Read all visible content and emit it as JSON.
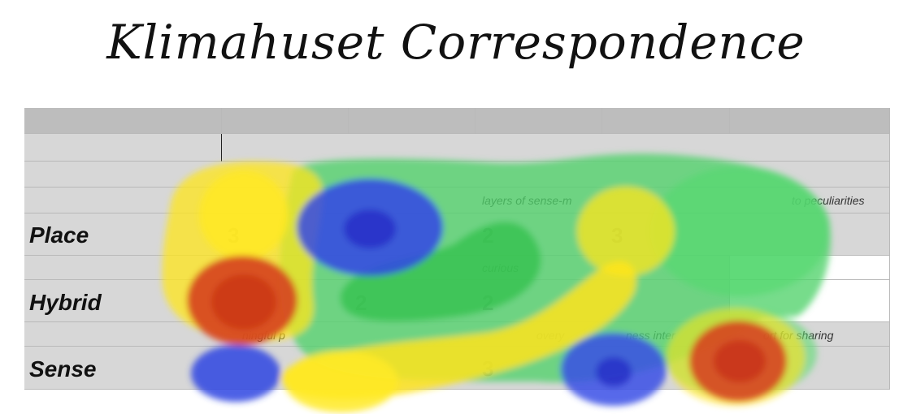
{
  "title": "Klimahuset Correspondence",
  "rows": {
    "place": "Place",
    "hybrid": "Hybrid",
    "sense": "Sense"
  },
  "cells": {
    "place_sub_1": "layers of sense-m",
    "place_sub_2": "to peculiarities",
    "place_val_1": "3",
    "place_val_2": "2",
    "place_val_3": "3",
    "hybrid_sub": "curious",
    "hybrid_val_1": "2",
    "hybrid_val_2": "2",
    "sense_sub_1": "ningful p",
    "sense_sub_2": "overy",
    "sense_sub_3": "ness inter",
    "sense_sub_4": "ort for sharing",
    "sense_val_1": "3"
  },
  "heatmap_colors": {
    "blue": "#3a4fe6",
    "green": "#4ccf5c",
    "yellow": "#ffe923",
    "red": "#d6411f"
  }
}
